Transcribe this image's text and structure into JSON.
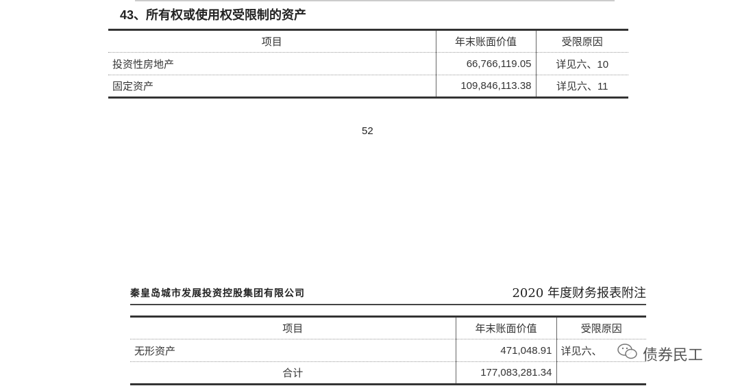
{
  "section_title": "43、所有权或使用权受限制的资产",
  "table1": {
    "headers": [
      "项目",
      "年末账面价值",
      "受限原因"
    ],
    "rows": [
      [
        "投资性房地产",
        "66,766,119.05",
        "详见六、10"
      ],
      [
        "固定资产",
        "109,846,113.38",
        "详见六、11"
      ]
    ]
  },
  "page_number": "52",
  "page_header": {
    "company": "秦皇岛城市发展投资控股集团有限公司",
    "document": "2020 年度财务报表附注"
  },
  "table2": {
    "headers": [
      "项目",
      "年末账面价值",
      "受限原因"
    ],
    "rows": [
      [
        "无形资产",
        "471,048.91",
        "详见六、"
      ],
      [
        "合计",
        "177,083,281.34",
        ""
      ]
    ]
  },
  "watermark": {
    "icon": "wechat-icon",
    "text": "债券民工"
  }
}
